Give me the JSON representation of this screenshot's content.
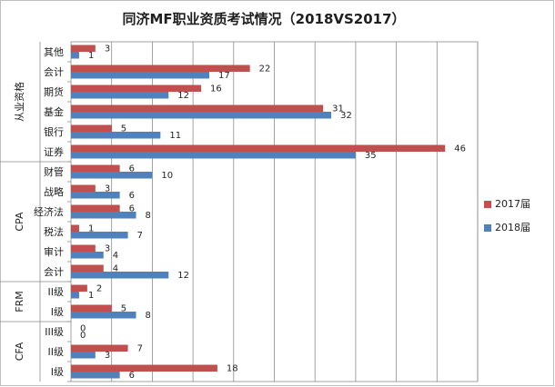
{
  "chart_data": {
    "type": "bar",
    "orientation": "horizontal",
    "title": "同济MF职业资质考试情况（2018VS2017）",
    "xlim": [
      0,
      50
    ],
    "grid": true,
    "legend_position": "right",
    "groups": [
      {
        "label": "从业资格",
        "categories": [
          "其他",
          "会计",
          "期货",
          "基金",
          "银行",
          "证券"
        ]
      },
      {
        "label": "CPA",
        "categories": [
          "财管",
          "战略",
          "经济法",
          "税法",
          "审计",
          "会计"
        ]
      },
      {
        "label": "FRM",
        "categories": [
          "II级",
          "I级"
        ]
      },
      {
        "label": "CFA",
        "categories": [
          "III级",
          "II级",
          "I级"
        ]
      }
    ],
    "series": [
      {
        "name": "2017届",
        "color": "#c0504d",
        "values": [
          3,
          22,
          16,
          31,
          5,
          46,
          6,
          3,
          6,
          1,
          3,
          4,
          2,
          5,
          0,
          7,
          18
        ]
      },
      {
        "name": "2018届",
        "color": "#4f81bd",
        "values": [
          1,
          17,
          12,
          32,
          11,
          35,
          10,
          6,
          8,
          7,
          4,
          12,
          1,
          8,
          0,
          3,
          6
        ]
      }
    ]
  }
}
